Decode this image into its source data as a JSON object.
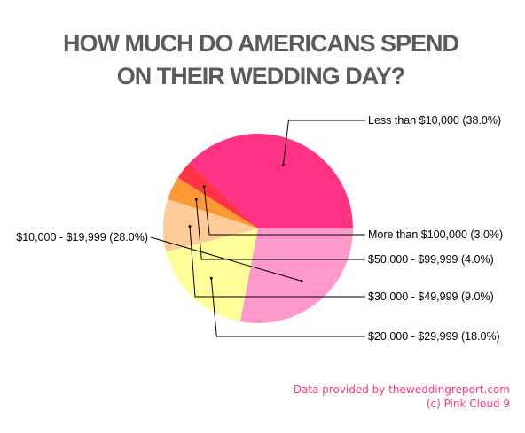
{
  "chart_data": {
    "type": "pie",
    "title": "HOW MUCH DO AMERICANS SPEND ON THEIR WEDDING DAY?",
    "title_lines": [
      "HOW MUCH DO AMERICANS SPEND",
      "ON THEIR WEDDING DAY?"
    ],
    "slices": [
      {
        "label": "Less than $10,000",
        "value": 38.0,
        "display": "Less than $10,000 (38.0%)",
        "color": "#ff3385"
      },
      {
        "label": "More than $100,000",
        "value": 3.0,
        "display": "More than $100,000 (3.0%)",
        "color": "#ff3344"
      },
      {
        "label": "$50,000 - $99,999",
        "value": 4.0,
        "display": "$50,000 - $99,999 (4.0%)",
        "color": "#ff9933"
      },
      {
        "label": "$30,000 - $49,999",
        "value": 9.0,
        "display": "$30,000 - $49,999 (9.0%)",
        "color": "#ffcc99"
      },
      {
        "label": "$20,000 - $29,999",
        "value": 18.0,
        "display": "$20,000 - $29,999 (18.0%)",
        "color": "#ffff99"
      },
      {
        "label": "$10,000 - $19,999",
        "value": 28.0,
        "display": "$10,000 - $19,999 (28.0%)",
        "color": "#ff99cc"
      }
    ]
  },
  "credits": {
    "line1": "Data provided by theweddingreport.com",
    "line2": "(c) Pink Cloud 9",
    "color": "#ff3385"
  }
}
